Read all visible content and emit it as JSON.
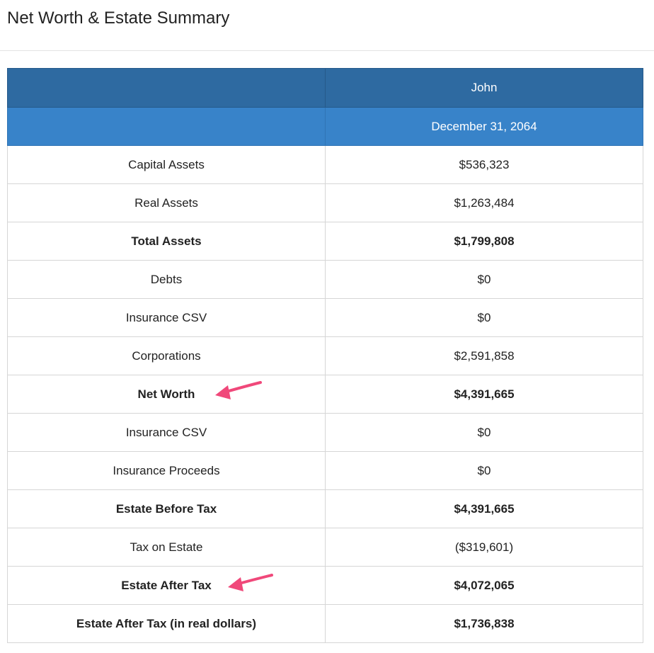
{
  "page": {
    "title": "Net Worth & Estate Summary"
  },
  "table": {
    "header_label": "",
    "person": "John",
    "date": "December 31, 2064",
    "rows": [
      {
        "label": "Capital Assets",
        "value": "$536,323",
        "bold": false
      },
      {
        "label": "Real Assets",
        "value": "$1,263,484",
        "bold": false
      },
      {
        "label": "Total Assets",
        "value": "$1,799,808",
        "bold": true
      },
      {
        "label": "Debts",
        "value": "$0",
        "bold": false
      },
      {
        "label": "Insurance CSV",
        "value": "$0",
        "bold": false
      },
      {
        "label": "Corporations",
        "value": "$2,591,858",
        "bold": false
      },
      {
        "label": "Net Worth",
        "value": "$4,391,665",
        "bold": true
      },
      {
        "label": "Insurance CSV",
        "value": "$0",
        "bold": false
      },
      {
        "label": "Insurance Proceeds",
        "value": "$0",
        "bold": false
      },
      {
        "label": "Estate Before Tax",
        "value": "$4,391,665",
        "bold": true
      },
      {
        "label": "Tax on Estate",
        "value": "($319,601)",
        "bold": false
      },
      {
        "label": "Estate After Tax",
        "value": "$4,072,065",
        "bold": true
      },
      {
        "label": "Estate After Tax (in real dollars)",
        "value": "$1,736,838",
        "bold": true
      }
    ]
  },
  "annotations": {
    "arrow_color": "#f0487a",
    "arrow_icon": "pink-arrow-icon"
  }
}
